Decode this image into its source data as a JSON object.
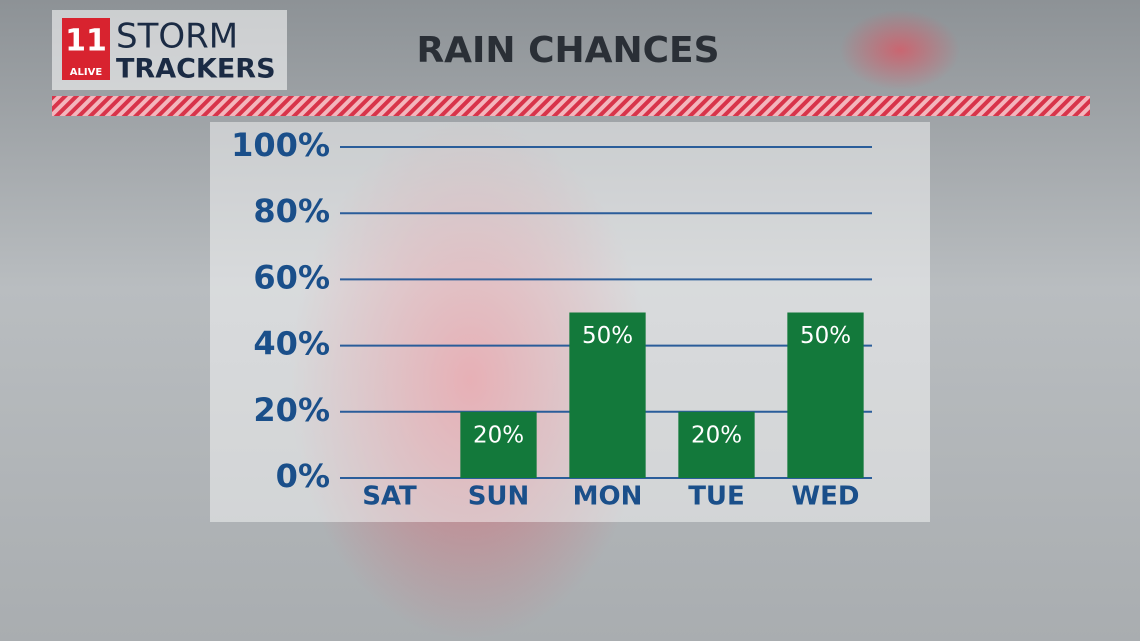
{
  "logo": {
    "number": "11",
    "station": "ALIVE",
    "line1": "STORM",
    "line2": "TRACKERS"
  },
  "chart_data": {
    "type": "bar",
    "title": "RAIN CHANCES",
    "categories": [
      "SAT",
      "SUN",
      "MON",
      "TUE",
      "WED"
    ],
    "values": [
      0,
      20,
      50,
      20,
      50
    ],
    "value_labels": [
      null,
      "20%",
      "50%",
      "20%",
      "50%"
    ],
    "color": "#13793b",
    "ylim": [
      0,
      100
    ],
    "yticks": [
      {
        "value": 0,
        "label": "0%"
      },
      {
        "value": 20,
        "label": "20%"
      },
      {
        "value": 40,
        "label": "40%"
      },
      {
        "value": 60,
        "label": "60%"
      },
      {
        "value": 80,
        "label": "80%"
      },
      {
        "value": 100,
        "label": "100%"
      }
    ],
    "grid": true
  }
}
